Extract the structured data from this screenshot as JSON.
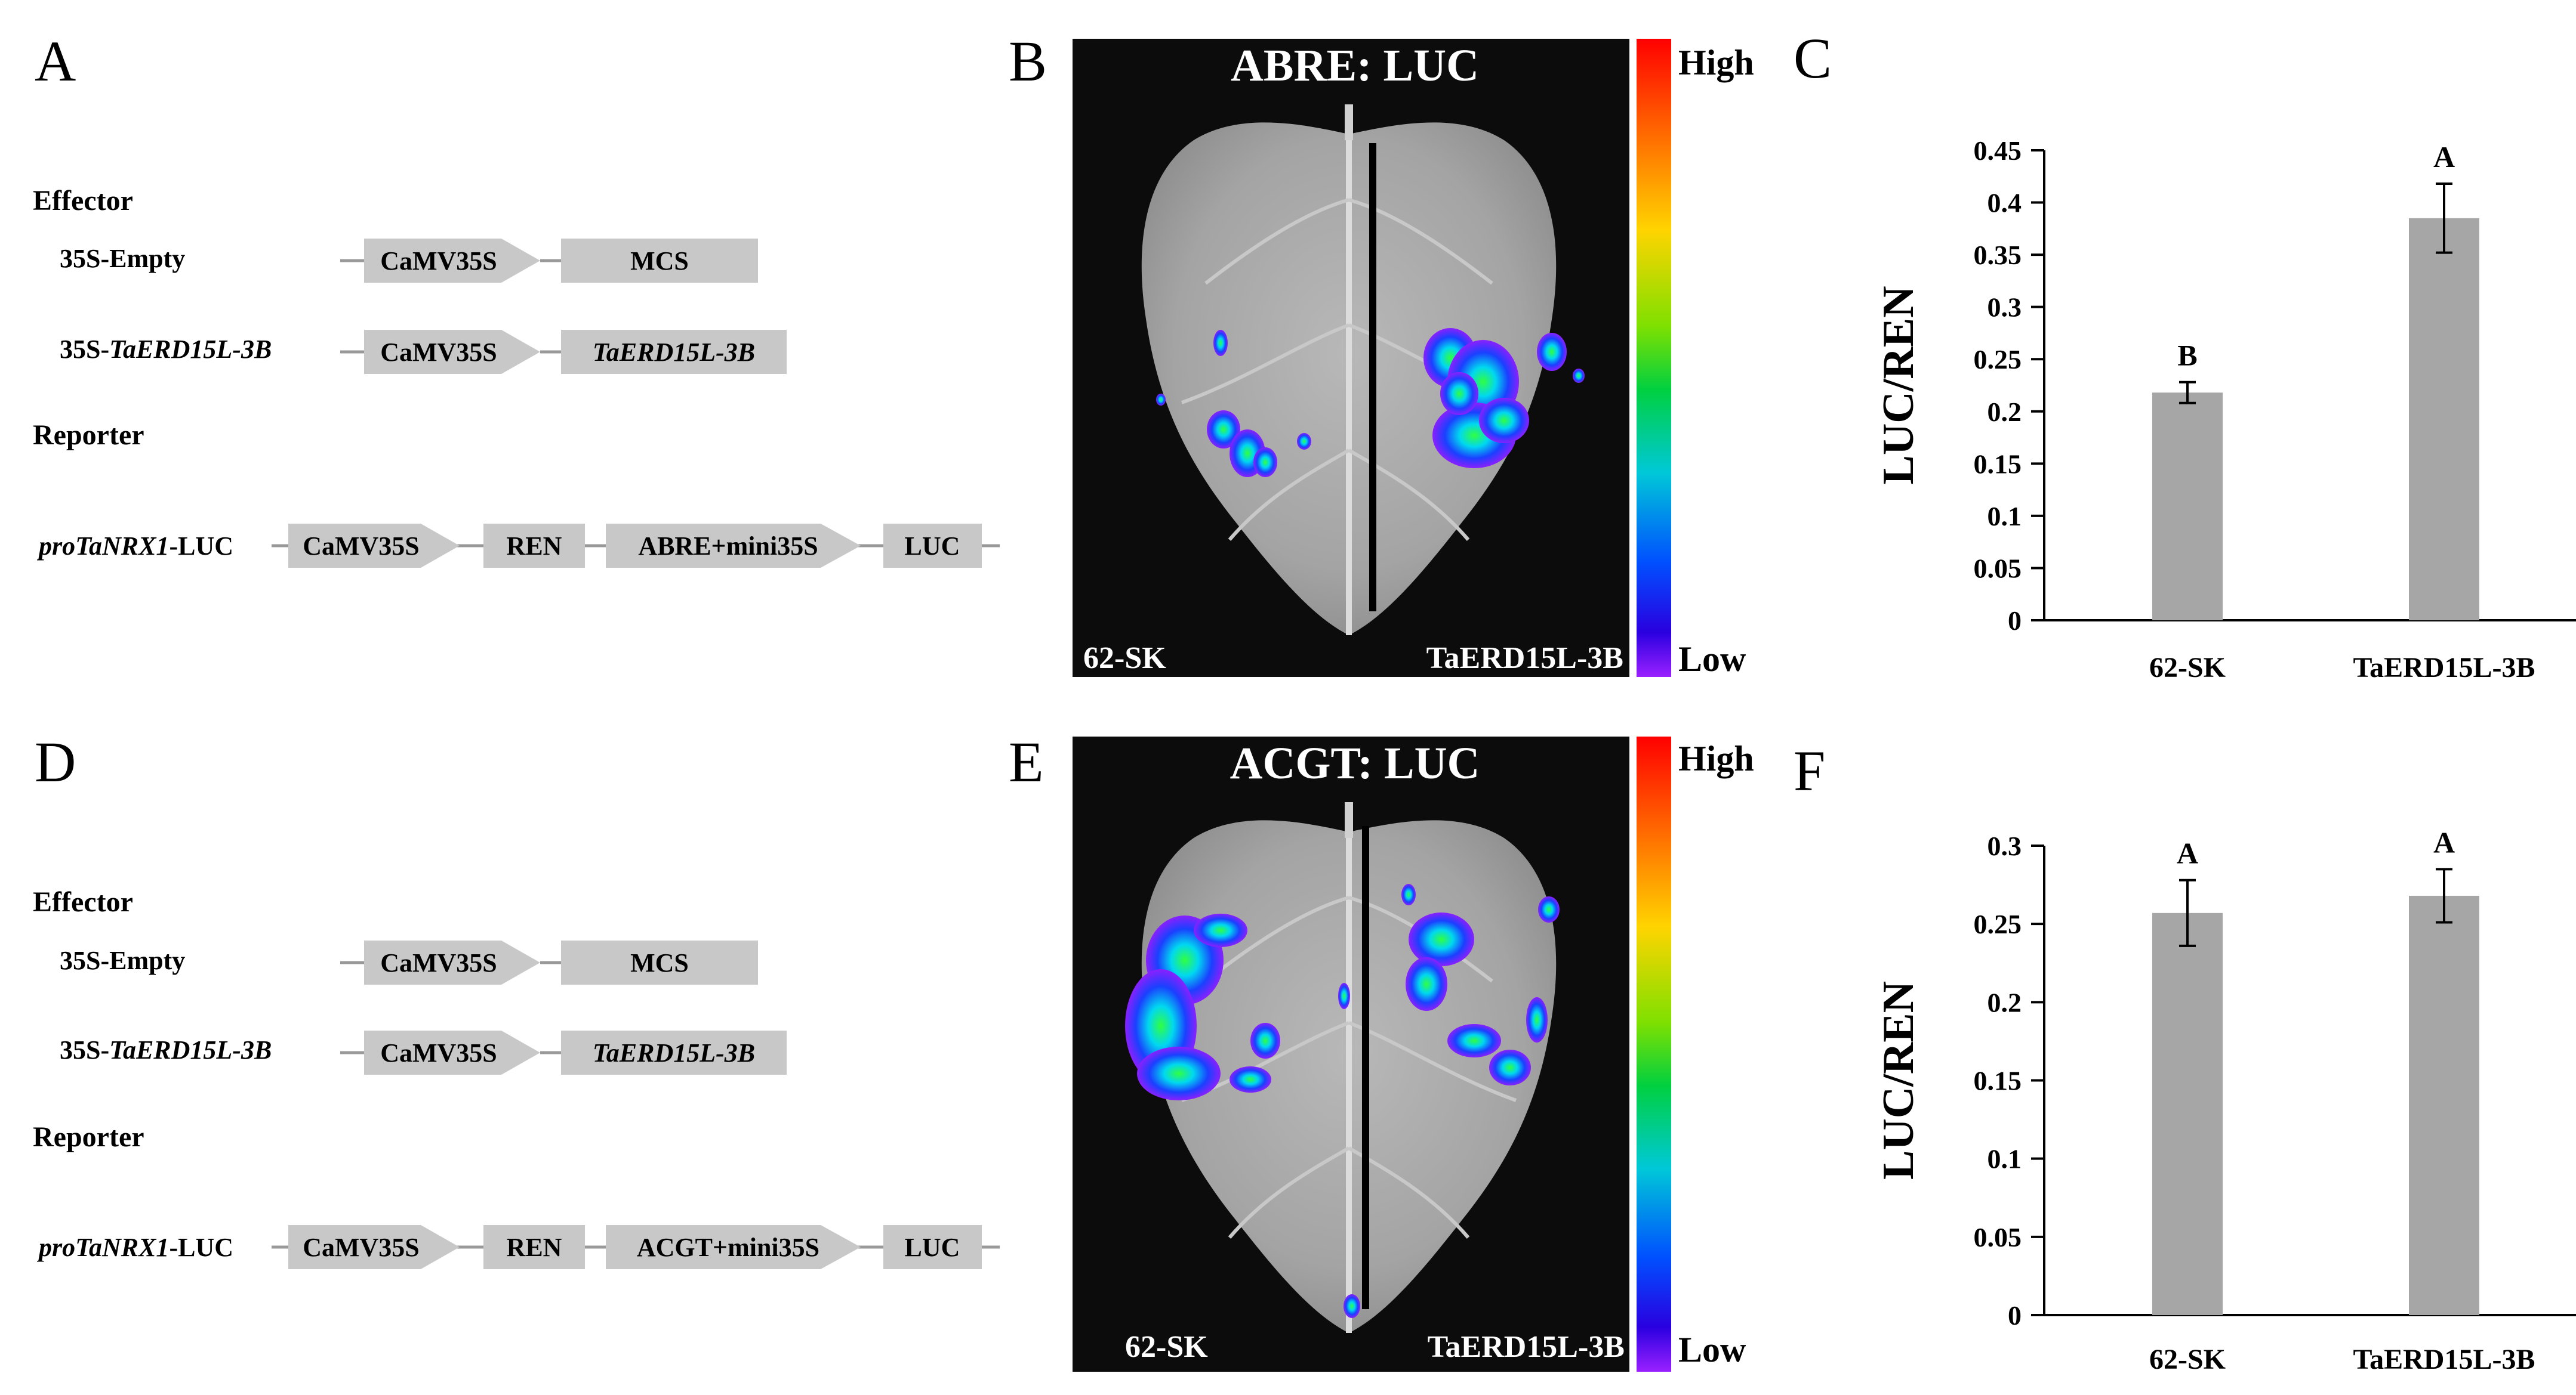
{
  "panels": {
    "a_letter": "A",
    "b_letter": "B",
    "c_letter": "C",
    "d_letter": "D",
    "e_letter": "E",
    "f_letter": "F"
  },
  "diagram": {
    "effector_label": "Effector",
    "reporter_label": "Reporter",
    "construct_empty": "35S-Empty",
    "construct_erd_prefix": "35S-",
    "construct_erd_gene": "TaERD15L-3B",
    "reporter_prefix": "proTaNRX1",
    "reporter_suffix": "-LUC",
    "promoter": "CaMV35S",
    "mcs": "MCS",
    "gene": "TaERD15L-3B",
    "ren": "REN",
    "luc": "LUC",
    "top_element": "ABRE+mini35S",
    "bottom_element": "ACGT+mini35S",
    "box_fill": "#c8c8c8"
  },
  "imaging": {
    "top_title": "ABRE: LUC",
    "bottom_title": "ACGT: LUC",
    "left_sample": "62-SK",
    "right_sample": "TaERD15L-3B",
    "scale_high": "High",
    "scale_low": "Low"
  },
  "chart_data": [
    {
      "type": "bar",
      "panel": "C",
      "ylabel": "LUC/REN",
      "ylim": [
        0,
        0.45
      ],
      "ytick_labels": [
        "0",
        "0.05",
        "0.1",
        "0.15",
        "0.2",
        "0.25",
        "0.3",
        "0.35",
        "0.4",
        "0.45"
      ],
      "categories": [
        "62-SK",
        "TaERD15L-3B"
      ],
      "values": [
        0.218,
        0.385
      ],
      "errors": [
        0.01,
        0.033
      ],
      "significance": [
        "B",
        "A"
      ],
      "bar_color": "#a6a6a6"
    },
    {
      "type": "bar",
      "panel": "F",
      "ylabel": "LUC/REN",
      "ylim": [
        0,
        0.3
      ],
      "ytick_labels": [
        "0",
        "0.05",
        "0.1",
        "0.15",
        "0.2",
        "0.25",
        "0.3"
      ],
      "categories": [
        "62-SK",
        "TaERD15L-3B"
      ],
      "values": [
        0.257,
        0.268
      ],
      "errors": [
        0.021,
        0.017
      ],
      "significance": [
        "A",
        "A"
      ],
      "bar_color": "#a6a6a6"
    }
  ]
}
